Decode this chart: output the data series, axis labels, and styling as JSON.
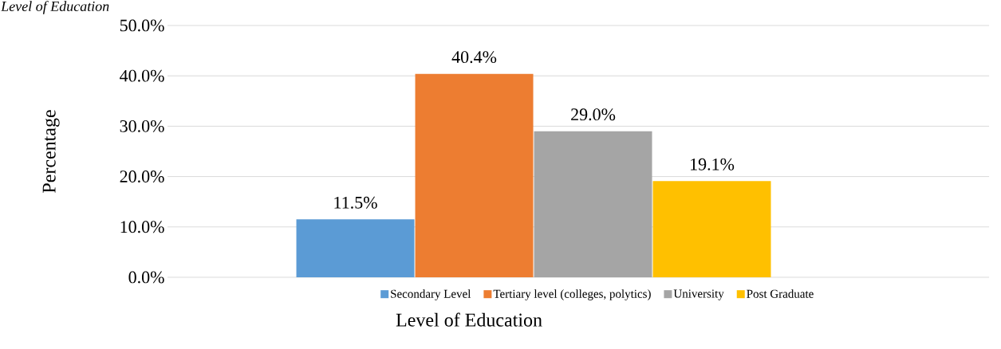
{
  "chart_data": {
    "type": "bar",
    "title": "Level of Education",
    "ylabel": "Percentage",
    "xlabel": "Level of Education",
    "categories": [
      null
    ],
    "series": [
      {
        "name": "Secondary Level",
        "color": "#5b9bd5",
        "values": [
          11.5
        ],
        "value_labels": [
          "11.5%"
        ]
      },
      {
        "name": "Tertiary level (colleges, polytics)",
        "color": "#ed7d31",
        "values": [
          40.4
        ],
        "value_labels": [
          "40.4%"
        ]
      },
      {
        "name": "University",
        "color": "#a5a5a5",
        "values": [
          29.0
        ],
        "value_labels": [
          "29.0%"
        ]
      },
      {
        "name": "Post Graduate",
        "color": "#ffc000",
        "values": [
          19.1
        ],
        "value_labels": [
          "19.1%"
        ]
      }
    ],
    "ylim": [
      0,
      50
    ],
    "yticks": [
      {
        "value": 0,
        "label": "0.0%"
      },
      {
        "value": 10,
        "label": "10.0%"
      },
      {
        "value": 20,
        "label": "20.0%"
      },
      {
        "value": 30,
        "label": "30.0%"
      },
      {
        "value": 40,
        "label": "40.0%"
      },
      {
        "value": 50,
        "label": "50.0%"
      }
    ],
    "grid": "y",
    "legend": "bottom"
  }
}
